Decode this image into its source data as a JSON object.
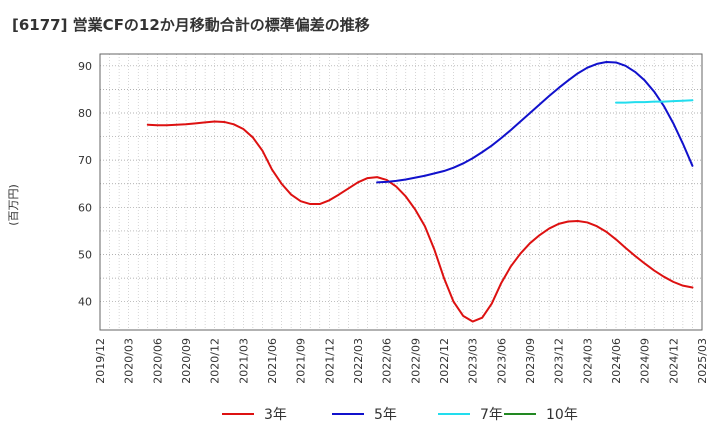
{
  "chart_data": {
    "type": "line",
    "title": "[6177]  営業CFの12か月移動合計の標準偏差の推移",
    "ylabel": "(百万円)",
    "xlabel": "",
    "ylim": [
      34,
      92.5
    ],
    "yticks": [
      40,
      50,
      60,
      70,
      80,
      90
    ],
    "xticks": [
      "2019/12",
      "2020/03",
      "2020/06",
      "2020/09",
      "2020/12",
      "2021/03",
      "2021/06",
      "2021/09",
      "2021/12",
      "2022/03",
      "2022/06",
      "2022/09",
      "2022/12",
      "2023/03",
      "2023/06",
      "2023/09",
      "2023/12",
      "2024/03",
      "2024/06",
      "2024/09",
      "2024/12",
      "2025/03"
    ],
    "grid": true,
    "legend": "bottom",
    "series": [
      {
        "name": "3年",
        "color": "#dd1111",
        "points": [
          [
            "2020/05",
            77.5
          ],
          [
            "2020/06",
            77.4
          ],
          [
            "2020/07",
            77.4
          ],
          [
            "2020/08",
            77.5
          ],
          [
            "2020/09",
            77.6
          ],
          [
            "2020/10",
            77.8
          ],
          [
            "2020/11",
            78.0
          ],
          [
            "2020/12",
            78.2
          ],
          [
            "2021/01",
            78.1
          ],
          [
            "2021/02",
            77.6
          ],
          [
            "2021/03",
            76.6
          ],
          [
            "2021/04",
            74.8
          ],
          [
            "2021/05",
            72.0
          ],
          [
            "2021/06",
            68.0
          ],
          [
            "2021/07",
            65.0
          ],
          [
            "2021/08",
            62.7
          ],
          [
            "2021/09",
            61.3
          ],
          [
            "2021/10",
            60.7
          ],
          [
            "2021/11",
            60.7
          ],
          [
            "2021/12",
            61.5
          ],
          [
            "2022/01",
            62.7
          ],
          [
            "2022/02",
            64.0
          ],
          [
            "2022/03",
            65.3
          ],
          [
            "2022/04",
            66.2
          ],
          [
            "2022/05",
            66.4
          ],
          [
            "2022/06",
            65.8
          ],
          [
            "2022/07",
            64.4
          ],
          [
            "2022/08",
            62.3
          ],
          [
            "2022/09",
            59.5
          ],
          [
            "2022/10",
            56.0
          ],
          [
            "2022/11",
            51.0
          ],
          [
            "2022/12",
            45.0
          ],
          [
            "2023/01",
            40.0
          ],
          [
            "2023/02",
            37.0
          ],
          [
            "2023/03",
            35.8
          ],
          [
            "2023/04",
            36.6
          ],
          [
            "2023/05",
            39.6
          ],
          [
            "2023/06",
            44.0
          ],
          [
            "2023/07",
            47.5
          ],
          [
            "2023/08",
            50.2
          ],
          [
            "2023/09",
            52.4
          ],
          [
            "2023/10",
            54.1
          ],
          [
            "2023/11",
            55.5
          ],
          [
            "2023/12",
            56.5
          ],
          [
            "2024/01",
            57.0
          ],
          [
            "2024/02",
            57.1
          ],
          [
            "2024/03",
            56.8
          ],
          [
            "2024/04",
            56.0
          ],
          [
            "2024/05",
            54.8
          ],
          [
            "2024/06",
            53.2
          ],
          [
            "2024/07",
            51.4
          ],
          [
            "2024/08",
            49.7
          ],
          [
            "2024/09",
            48.1
          ],
          [
            "2024/10",
            46.6
          ],
          [
            "2024/11",
            45.3
          ],
          [
            "2024/12",
            44.2
          ],
          [
            "2025/01",
            43.4
          ],
          [
            "2025/02",
            43.0
          ]
        ]
      },
      {
        "name": "5年",
        "color": "#1111cc",
        "points": [
          [
            "2022/05",
            65.3
          ],
          [
            "2022/06",
            65.4
          ],
          [
            "2022/07",
            65.6
          ],
          [
            "2022/08",
            65.9
          ],
          [
            "2022/09",
            66.3
          ],
          [
            "2022/10",
            66.7
          ],
          [
            "2022/11",
            67.2
          ],
          [
            "2022/12",
            67.7
          ],
          [
            "2023/01",
            68.4
          ],
          [
            "2023/02",
            69.3
          ],
          [
            "2023/03",
            70.4
          ],
          [
            "2023/04",
            71.7
          ],
          [
            "2023/05",
            73.1
          ],
          [
            "2023/06",
            74.7
          ],
          [
            "2023/07",
            76.4
          ],
          [
            "2023/08",
            78.2
          ],
          [
            "2023/09",
            80.0
          ],
          [
            "2023/10",
            81.8
          ],
          [
            "2023/11",
            83.6
          ],
          [
            "2023/12",
            85.3
          ],
          [
            "2024/01",
            86.9
          ],
          [
            "2024/02",
            88.4
          ],
          [
            "2024/03",
            89.6
          ],
          [
            "2024/04",
            90.4
          ],
          [
            "2024/05",
            90.8
          ],
          [
            "2024/06",
            90.7
          ],
          [
            "2024/07",
            90.0
          ],
          [
            "2024/08",
            88.7
          ],
          [
            "2024/09",
            86.9
          ],
          [
            "2024/10",
            84.5
          ],
          [
            "2024/11",
            81.5
          ],
          [
            "2024/12",
            77.8
          ],
          [
            "2025/01",
            73.5
          ],
          [
            "2025/02",
            68.8
          ]
        ]
      },
      {
        "name": "7年",
        "color": "#22ddee",
        "points": [
          [
            "2024/06",
            82.2
          ],
          [
            "2024/07",
            82.2
          ],
          [
            "2024/08",
            82.3
          ],
          [
            "2024/09",
            82.3
          ],
          [
            "2024/10",
            82.4
          ],
          [
            "2024/11",
            82.4
          ],
          [
            "2024/12",
            82.5
          ],
          [
            "2025/01",
            82.6
          ],
          [
            "2025/02",
            82.7
          ]
        ]
      },
      {
        "name": "10年",
        "color": "#228822",
        "points": []
      }
    ]
  }
}
